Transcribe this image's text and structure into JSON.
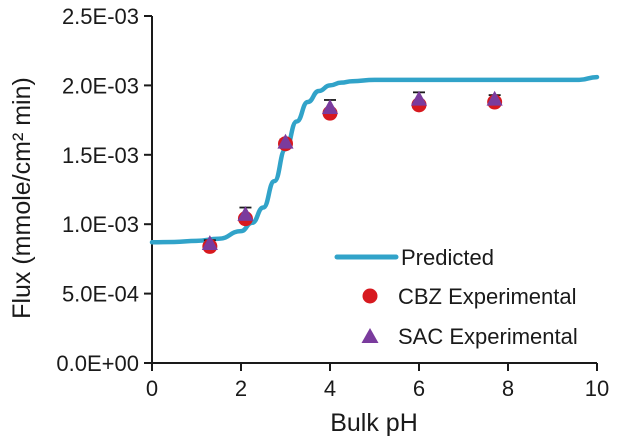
{
  "figure": {
    "background": "#ffffff"
  },
  "chart_data": {
    "type": "line",
    "title": "",
    "xlabel": "Bulk pH",
    "ylabel": "Flux (mmole/cm² min)",
    "xlim": [
      0,
      10
    ],
    "ylim": [
      0,
      0.0025
    ],
    "grid": false,
    "legend_position": "inside lower right",
    "x_ticks": [
      {
        "v": 0,
        "label": "0"
      },
      {
        "v": 2,
        "label": "2"
      },
      {
        "v": 4,
        "label": "4"
      },
      {
        "v": 6,
        "label": "6"
      },
      {
        "v": 8,
        "label": "8"
      },
      {
        "v": 10,
        "label": "10"
      }
    ],
    "y_ticks": [
      {
        "v": 0.0,
        "label": "0.0E+00"
      },
      {
        "v": 0.0005,
        "label": "5.0E-04"
      },
      {
        "v": 0.001,
        "label": "1.0E-03"
      },
      {
        "v": 0.0015,
        "label": "1.5E-03"
      },
      {
        "v": 0.002,
        "label": "2.0E-03"
      },
      {
        "v": 0.0025,
        "label": "2.5E-03"
      }
    ],
    "series": [
      {
        "name": "Predicted",
        "kind": "line",
        "color": "#31a3c9",
        "stroke_width": 4.5,
        "x": [
          0,
          0.5,
          1,
          1.5,
          2,
          2.25,
          2.5,
          2.75,
          3,
          3.25,
          3.5,
          3.75,
          4,
          4.25,
          4.5,
          5,
          5.5,
          6,
          7,
          8,
          9,
          9.6,
          10
        ],
        "y": [
          0.00087,
          0.000872,
          0.00088,
          0.000895,
          0.00095,
          0.00101,
          0.00112,
          0.00131,
          0.00154,
          0.00174,
          0.00188,
          0.00196,
          0.002,
          0.00202,
          0.00203,
          0.00204,
          0.00204,
          0.00204,
          0.00204,
          0.00204,
          0.00204,
          0.00204,
          0.00206
        ]
      },
      {
        "name": "CBZ Experimental",
        "kind": "scatter",
        "marker": "circle",
        "color": "#d7191f",
        "marker_size": 7.5,
        "x": [
          1.3,
          2.1,
          3.0,
          4.0,
          6.0,
          7.7
        ],
        "y": [
          0.00084,
          0.00104,
          0.00158,
          0.0018,
          0.00186,
          0.00188
        ]
      },
      {
        "name": "SAC Experimental",
        "kind": "scatter",
        "marker": "triangle",
        "color": "#7a3b9d",
        "marker_size": 8.5,
        "x": [
          1.3,
          2.1,
          3.0,
          4.0,
          6.0,
          7.7
        ],
        "y": [
          0.00086,
          0.00107,
          0.00159,
          0.00184,
          0.0019,
          0.0019
        ],
        "err_up": [
          2.5e-05,
          5e-05,
          2e-05,
          5.5e-05,
          5e-05,
          3e-05
        ]
      }
    ]
  }
}
